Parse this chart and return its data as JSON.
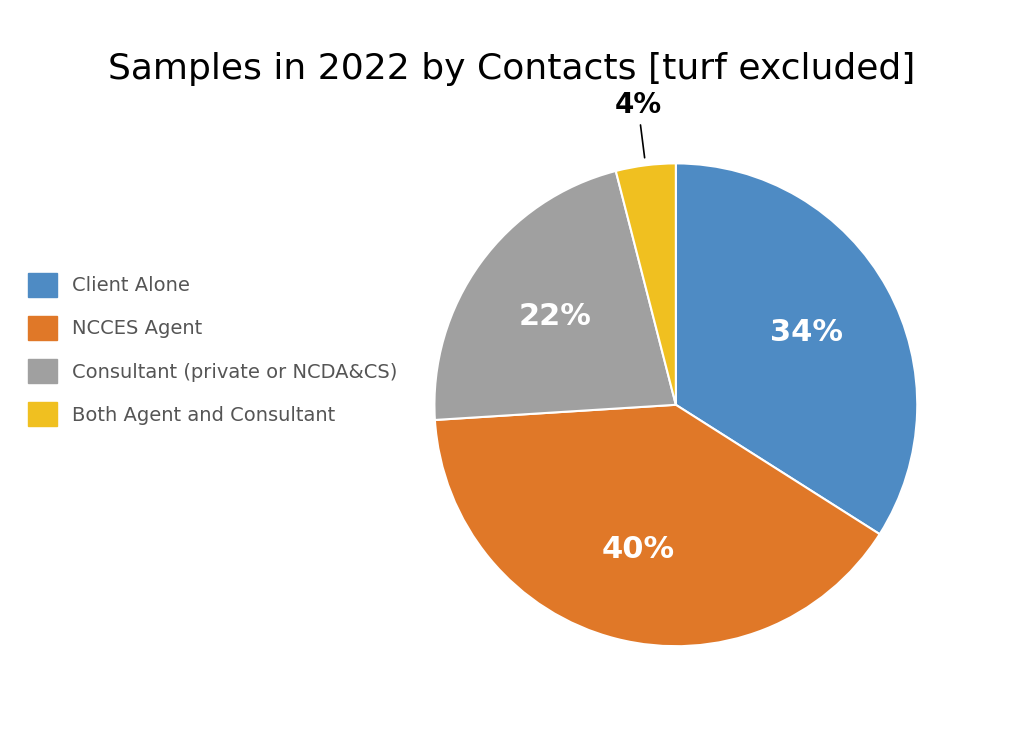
{
  "title": "Samples in 2022 by Contacts [turf excluded]",
  "labels": [
    "Client Alone",
    "NCCES Agent",
    "Consultant (private or NCDA&CS)",
    "Both Agent and Consultant"
  ],
  "values": [
    34,
    40,
    22,
    4
  ],
  "colors": [
    "#4E8BC4",
    "#E07828",
    "#A0A0A0",
    "#F0C020"
  ],
  "pct_labels": [
    "34%",
    "40%",
    "22%",
    "4%"
  ],
  "pct_label_colors": [
    "white",
    "white",
    "white",
    "black"
  ],
  "background_color": "#ffffff",
  "title_fontsize": 26,
  "legend_fontsize": 14,
  "pct_fontsize": 22,
  "startangle": 90
}
